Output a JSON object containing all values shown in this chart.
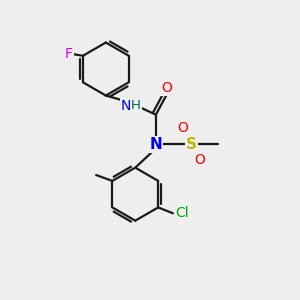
{
  "background_color": "#eeeeee",
  "bond_color": "#1a1a1a",
  "atom_colors": {
    "F": "#e000e0",
    "N": "#0000ff",
    "O": "#ff0000",
    "S": "#bbbb00",
    "Cl": "#00aa00",
    "H": "#006060",
    "C": "#1a1a1a"
  },
  "figsize": [
    3.0,
    3.0
  ],
  "dpi": 100
}
